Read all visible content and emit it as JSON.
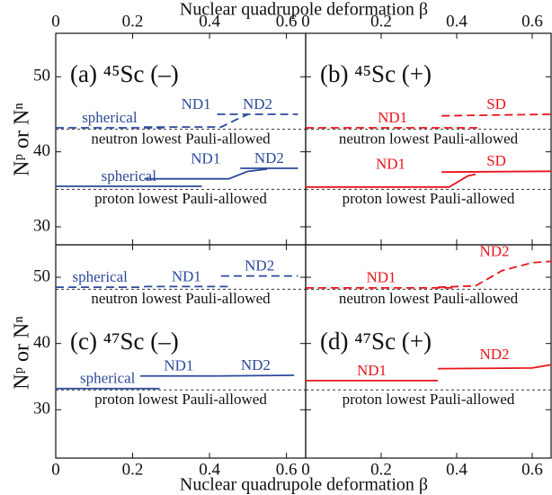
{
  "figure": {
    "xlabel": "Nuclear quadrupole deformation β",
    "ylabel": "Nᵖ or Nⁿ"
  },
  "chart_data": [
    {
      "type": "line",
      "title": "(a) ⁴⁵Sc (–)",
      "xlim": [
        0,
        0.65
      ],
      "ylim": [
        27.6,
        55.8
      ],
      "xticks": [
        0.0,
        0.2,
        0.4,
        0.6
      ],
      "yticks": [
        30,
        40,
        50
      ],
      "color": "#2b4a9a",
      "reference_lines": [
        {
          "label": "neutron lowest Pauli-allowed",
          "value": 43
        },
        {
          "label": "proton lowest Pauli-allowed",
          "value": 35
        }
      ],
      "series": [
        {
          "name": "spherical",
          "style": "dashed",
          "x": [
            0,
            0.28
          ],
          "values": [
            43.2,
            43.2
          ]
        },
        {
          "name": "ND1",
          "style": "dashed",
          "x": [
            0.23,
            0.43,
            0.47,
            0.5
          ],
          "values": [
            43.3,
            43.3,
            44.3,
            45
          ]
        },
        {
          "name": "ND2",
          "style": "dashed",
          "x": [
            0.42,
            0.63
          ],
          "values": [
            45,
            45
          ]
        },
        {
          "name": "spherical",
          "style": "solid",
          "x": [
            0,
            0.38
          ],
          "values": [
            35.4,
            35.4
          ]
        },
        {
          "name": "ND1",
          "style": "solid",
          "x": [
            0.23,
            0.45,
            0.5,
            0.55
          ],
          "values": [
            36.4,
            36.4,
            37.4,
            37.7
          ]
        },
        {
          "name": "ND2",
          "style": "solid",
          "x": [
            0.48,
            0.63
          ],
          "values": [
            37.8,
            37.8
          ]
        }
      ]
    },
    {
      "type": "line",
      "title": "(b) ⁴⁵Sc (+)",
      "xlim": [
        0,
        0.65
      ],
      "ylim": [
        27.6,
        55.8
      ],
      "xticks": [
        0.0,
        0.2,
        0.4,
        0.6
      ],
      "yticks": [
        30,
        40,
        50
      ],
      "color": "#e8141c",
      "reference_lines": [
        {
          "label": "neutron lowest Pauli-allowed",
          "value": 43
        },
        {
          "label": "proton lowest Pauli-allowed",
          "value": 35
        }
      ],
      "series": [
        {
          "name": "ND1",
          "style": "dashed",
          "x": [
            0,
            0.46
          ],
          "values": [
            43.2,
            43.2
          ]
        },
        {
          "name": "SD",
          "style": "dashed",
          "x": [
            0.36,
            0.65
          ],
          "values": [
            44.8,
            45
          ]
        },
        {
          "name": "ND1",
          "style": "solid",
          "x": [
            0,
            0.38,
            0.43,
            0.45
          ],
          "values": [
            35.3,
            35.3,
            36.8,
            37
          ]
        },
        {
          "name": "SD",
          "style": "solid",
          "x": [
            0.36,
            0.65
          ],
          "values": [
            37.3,
            37.4
          ]
        }
      ]
    },
    {
      "type": "line",
      "title": "(c) ⁴⁷Sc (–)",
      "xlim": [
        0,
        0.65
      ],
      "ylim": [
        22.7,
        54.9
      ],
      "xticks": [
        0.0,
        0.2,
        0.4,
        0.6
      ],
      "yticks": [
        30,
        40,
        50
      ],
      "color": "#2b4a9a",
      "reference_lines": [
        {
          "label": "neutron lowest Pauli-allowed",
          "value": 48.2
        },
        {
          "label": "proton lowest Pauli-allowed",
          "value": 33
        }
      ],
      "series": [
        {
          "name": "spherical",
          "style": "dashed",
          "x": [
            0,
            0.23
          ],
          "values": [
            48.5,
            48.5
          ]
        },
        {
          "name": "ND1",
          "style": "dashed",
          "x": [
            0.23,
            0.45
          ],
          "values": [
            48.6,
            48.6
          ]
        },
        {
          "name": "ND2",
          "style": "dashed",
          "x": [
            0.43,
            0.63
          ],
          "values": [
            50.2,
            50.2
          ]
        },
        {
          "name": "spherical",
          "style": "solid",
          "x": [
            0,
            0.27
          ],
          "values": [
            33.2,
            33.2
          ]
        },
        {
          "name": "ND1",
          "style": "solid",
          "x": [
            0.22,
            0.42
          ],
          "values": [
            35.1,
            35.1
          ]
        },
        {
          "name": "ND2",
          "style": "solid",
          "x": [
            0.42,
            0.62
          ],
          "values": [
            35.1,
            35.2
          ]
        }
      ]
    },
    {
      "type": "line",
      "title": "(d) ⁴⁷Sc (+)",
      "xlim": [
        0,
        0.65
      ],
      "ylim": [
        22.7,
        54.9
      ],
      "xticks": [
        0.0,
        0.2,
        0.4,
        0.6
      ],
      "yticks": [
        30,
        40,
        50
      ],
      "color": "#e8141c",
      "reference_lines": [
        {
          "label": "neutron lowest Pauli-allowed",
          "value": 48.2
        },
        {
          "label": "proton lowest Pauli-allowed",
          "value": 33
        }
      ],
      "series": [
        {
          "name": "ND1",
          "style": "dashed",
          "x": [
            0,
            0.4
          ],
          "values": [
            48.4,
            48.4
          ]
        },
        {
          "name": "ND2",
          "style": "dashed",
          "x": [
            0.35,
            0.45,
            0.52,
            0.6,
            0.65
          ],
          "values": [
            48.5,
            48.7,
            51,
            52.2,
            52.4
          ]
        },
        {
          "name": "ND1",
          "style": "solid",
          "x": [
            0,
            0.35
          ],
          "values": [
            34.4,
            34.4
          ]
        },
        {
          "name": "ND2",
          "style": "solid",
          "x": [
            0.35,
            0.6,
            0.65
          ],
          "values": [
            36.2,
            36.3,
            36.8
          ]
        }
      ]
    }
  ]
}
